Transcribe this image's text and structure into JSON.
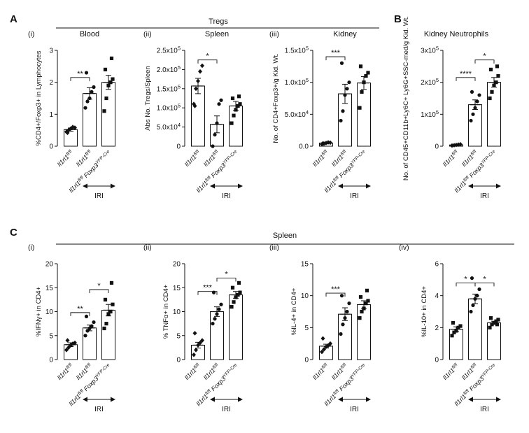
{
  "figure": {
    "panels": {
      "A": "A",
      "B": "B",
      "C": "C"
    },
    "groups": {
      "tregs": "Tregs",
      "kidney_neutrophils": "Kidney Neutrophils",
      "spleen": "Spleen"
    },
    "iri_label": "IRI",
    "category_labels": {
      "c1_gene": "Il1rl1",
      "c1_sup": "fl/fl",
      "c2_gene": "Il1rl1",
      "c2_sup": "fl/fl",
      "c3_gene1": "Il1rl1",
      "c3_sup1": "fl/fl",
      "c3_gene2": "Foxp3",
      "c3_sup2": "YFP-Cre"
    }
  },
  "chart_data": [
    {
      "id": "A-i",
      "type": "bar",
      "roman": "(i)",
      "title": "Blood",
      "ylabel": "%CD4+/Foxp3+ in Lymphocytes",
      "ylim": [
        0,
        3
      ],
      "yticks": [
        {
          "v": 0,
          "t": "0"
        },
        {
          "v": 1,
          "t": "1"
        },
        {
          "v": 2,
          "t": "2"
        },
        {
          "v": 3,
          "t": "3"
        }
      ],
      "marker_order": [
        "diamond",
        "circle",
        "square"
      ],
      "bars": [
        {
          "value": 0.52,
          "sem": 0.05,
          "points": [
            0.45,
            0.5,
            0.55,
            0.6,
            0.58,
            0.42
          ]
        },
        {
          "value": 1.65,
          "sem": 0.18,
          "points": [
            1.2,
            1.4,
            1.5,
            1.7,
            1.85,
            2.3
          ]
        },
        {
          "value": 2.0,
          "sem": 0.22,
          "points": [
            1.1,
            1.5,
            1.9,
            2.0,
            2.1,
            2.4,
            2.75
          ]
        }
      ],
      "significance": [
        {
          "from": 0,
          "to": 1,
          "label": "**",
          "y": 2.15
        }
      ]
    },
    {
      "id": "A-ii",
      "type": "bar",
      "roman": "(ii)",
      "title": "Spleen",
      "ylabel": "Abs No. Tregs/Spleen",
      "ylim": [
        0,
        250000
      ],
      "yticks": [
        {
          "v": 0,
          "t": "0"
        },
        {
          "v": 50000,
          "m": "5.0x10",
          "e": "4"
        },
        {
          "v": 100000,
          "m": "1.0x10",
          "e": "5"
        },
        {
          "v": 150000,
          "m": "1.5x10",
          "e": "5"
        },
        {
          "v": 200000,
          "m": "2.0x10",
          "e": "5"
        },
        {
          "v": 250000,
          "m": "2.5x10",
          "e": "5"
        }
      ],
      "marker_order": [
        "diamond",
        "circle",
        "square"
      ],
      "bars": [
        {
          "value": 157000,
          "sem": 20000,
          "points": [
            110000,
            150000,
            170000,
            195000,
            210000,
            105000
          ]
        },
        {
          "value": 57000,
          "sem": 22000,
          "points": [
            0,
            30000,
            60000,
            110000,
            120000
          ]
        },
        {
          "value": 105000,
          "sem": 12000,
          "points": [
            60000,
            80000,
            95000,
            105000,
            110000,
            125000,
            130000
          ]
        }
      ],
      "significance": [
        {
          "from": 0,
          "to": 1,
          "label": "*",
          "y": 225000
        }
      ]
    },
    {
      "id": "A-iii",
      "type": "bar",
      "roman": "(iii)",
      "title": "Kidney",
      "ylabel": "No. of CD4+Foxp3+/g Kid. Wt.",
      "ylim": [
        0,
        150000
      ],
      "yticks": [
        {
          "v": 0,
          "t": "0.0"
        },
        {
          "v": 50000,
          "m": "5.0x10",
          "e": "4"
        },
        {
          "v": 100000,
          "m": "1.0x10",
          "e": "5"
        },
        {
          "v": 150000,
          "m": "1.5x10",
          "e": "5"
        }
      ],
      "marker_order": [
        "diamond",
        "circle",
        "square"
      ],
      "bars": [
        {
          "value": 5000,
          "sem": 1000,
          "points": [
            3000,
            4000,
            5000,
            6000,
            5500,
            4500
          ]
        },
        {
          "value": 82000,
          "sem": 15000,
          "points": [
            40000,
            55000,
            80000,
            90000,
            100000,
            130000
          ]
        },
        {
          "value": 99000,
          "sem": 10000,
          "points": [
            60000,
            85000,
            100000,
            110000,
            115000,
            125000
          ]
        }
      ],
      "significance": [
        {
          "from": 0,
          "to": 1,
          "label": "***",
          "y": 140000
        }
      ]
    },
    {
      "id": "B",
      "type": "bar",
      "roman": "",
      "title": "",
      "ylabel": "No. of CD45+CD11b+Ly6C+ Ly6G+SSC-med/g Kid. Wt.",
      "ylim": [
        0,
        300000
      ],
      "yticks": [
        {
          "v": 0,
          "t": "0"
        },
        {
          "v": 100000,
          "m": "1x10",
          "e": "5"
        },
        {
          "v": 200000,
          "m": "2x10",
          "e": "5"
        },
        {
          "v": 300000,
          "m": "3x10",
          "e": "5"
        }
      ],
      "marker_order": [
        "diamond",
        "circle",
        "square"
      ],
      "bars": [
        {
          "value": 4000,
          "sem": 1000,
          "points": [
            2000,
            3000,
            4000,
            5000,
            6000
          ]
        },
        {
          "value": 130000,
          "sem": 15000,
          "points": [
            80000,
            100000,
            120000,
            140000,
            160000,
            170000
          ]
        },
        {
          "value": 200000,
          "sem": 15000,
          "points": [
            150000,
            170000,
            190000,
            200000,
            220000,
            240000,
            250000
          ]
        }
      ],
      "significance": [
        {
          "from": 0,
          "to": 1,
          "label": "****",
          "y": 215000
        },
        {
          "from": 1,
          "to": 2,
          "label": "*",
          "y": 270000
        }
      ]
    },
    {
      "id": "C-i",
      "type": "bar",
      "roman": "(i)",
      "title": "",
      "ylabel": "%IFNγ+ in CD4+",
      "ylim": [
        0,
        20
      ],
      "yticks": [
        {
          "v": 0,
          "t": "0"
        },
        {
          "v": 5,
          "t": "5"
        },
        {
          "v": 10,
          "t": "10"
        },
        {
          "v": 15,
          "t": "15"
        },
        {
          "v": 20,
          "t": "20"
        }
      ],
      "marker_order": [
        "diamond",
        "circle",
        "square"
      ],
      "bars": [
        {
          "value": 3.1,
          "sem": 0.4,
          "points": [
            2.0,
            2.5,
            3.0,
            3.3,
            3.5,
            4.0
          ]
        },
        {
          "value": 6.6,
          "sem": 0.6,
          "points": [
            5.0,
            6.0,
            6.5,
            7.0,
            7.8,
            9.0
          ]
        },
        {
          "value": 10.3,
          "sem": 1.2,
          "points": [
            6.5,
            7.5,
            9.5,
            10.0,
            11.5,
            12.5,
            16.0
          ]
        }
      ],
      "significance": [
        {
          "from": 0,
          "to": 1,
          "label": "**",
          "y": 9.8
        },
        {
          "from": 1,
          "to": 2,
          "label": "*",
          "y": 14.6
        }
      ]
    },
    {
      "id": "C-ii",
      "type": "bar",
      "roman": "(ii)",
      "title": "",
      "ylabel": "% TNFα+ in CD4+",
      "ylim": [
        0,
        20
      ],
      "yticks": [
        {
          "v": 0,
          "t": "0"
        },
        {
          "v": 5,
          "t": "5"
        },
        {
          "v": 10,
          "t": "10"
        },
        {
          "v": 15,
          "t": "15"
        },
        {
          "v": 20,
          "t": "20"
        }
      ],
      "marker_order": [
        "diamond",
        "circle",
        "square"
      ],
      "bars": [
        {
          "value": 3.0,
          "sem": 0.6,
          "points": [
            1.0,
            2.0,
            3.0,
            3.5,
            4.0,
            5.5
          ]
        },
        {
          "value": 10.0,
          "sem": 1.0,
          "points": [
            7.5,
            8.5,
            9.5,
            10.5,
            11.5,
            14.0
          ]
        },
        {
          "value": 13.5,
          "sem": 0.7,
          "points": [
            11.0,
            12.0,
            13.0,
            13.5,
            14.0,
            15.0,
            16.0
          ]
        }
      ],
      "significance": [
        {
          "from": 0,
          "to": 1,
          "label": "***",
          "y": 14.2
        },
        {
          "from": 1,
          "to": 2,
          "label": "*",
          "y": 17.0
        }
      ]
    },
    {
      "id": "C-iii",
      "type": "bar",
      "roman": "(iii)",
      "title": "",
      "ylabel": "%IL-4+ in CD4+",
      "ylim": [
        0,
        15
      ],
      "yticks": [
        {
          "v": 0,
          "t": "0"
        },
        {
          "v": 5,
          "t": "5"
        },
        {
          "v": 10,
          "t": "10"
        },
        {
          "v": 15,
          "t": "15"
        }
      ],
      "marker_order": [
        "diamond",
        "circle",
        "square"
      ],
      "bars": [
        {
          "value": 2.1,
          "sem": 0.3,
          "points": [
            1.2,
            1.6,
            2.0,
            2.2,
            2.5,
            3.3
          ]
        },
        {
          "value": 7.1,
          "sem": 1.0,
          "points": [
            4.0,
            5.5,
            6.5,
            7.5,
            8.8,
            10.0
          ]
        },
        {
          "value": 8.6,
          "sem": 0.6,
          "points": [
            6.5,
            7.5,
            8.0,
            8.8,
            9.2,
            9.8,
            10.8
          ]
        }
      ],
      "significance": [
        {
          "from": 0,
          "to": 1,
          "label": "***",
          "y": 10.4
        }
      ]
    },
    {
      "id": "C-iv",
      "type": "bar",
      "roman": "(iv)",
      "title": "",
      "ylabel": "%IL-10+ in CD4+",
      "ylim": [
        0,
        6
      ],
      "yticks": [
        {
          "v": 0,
          "t": "0"
        },
        {
          "v": 2,
          "t": "2"
        },
        {
          "v": 4,
          "t": "4"
        },
        {
          "v": 6,
          "t": "6"
        }
      ],
      "marker_order": [
        "square",
        "circle",
        "square"
      ],
      "bars": [
        {
          "value": 1.9,
          "sem": 0.15,
          "points": [
            1.5,
            1.7,
            1.8,
            2.0,
            2.1,
            2.3
          ]
        },
        {
          "value": 3.8,
          "sem": 0.3,
          "points": [
            3.0,
            3.4,
            3.8,
            4.0,
            4.4,
            5.1
          ]
        },
        {
          "value": 2.3,
          "sem": 0.1,
          "points": [
            2.0,
            2.2,
            2.3,
            2.4,
            2.5,
            2.6,
            2.2
          ]
        }
      ],
      "significance": [
        {
          "from": 0,
          "to": 1,
          "label": "*",
          "y": 4.8
        },
        {
          "from": 1,
          "to": 2,
          "label": "*",
          "y": 4.8
        }
      ]
    }
  ]
}
